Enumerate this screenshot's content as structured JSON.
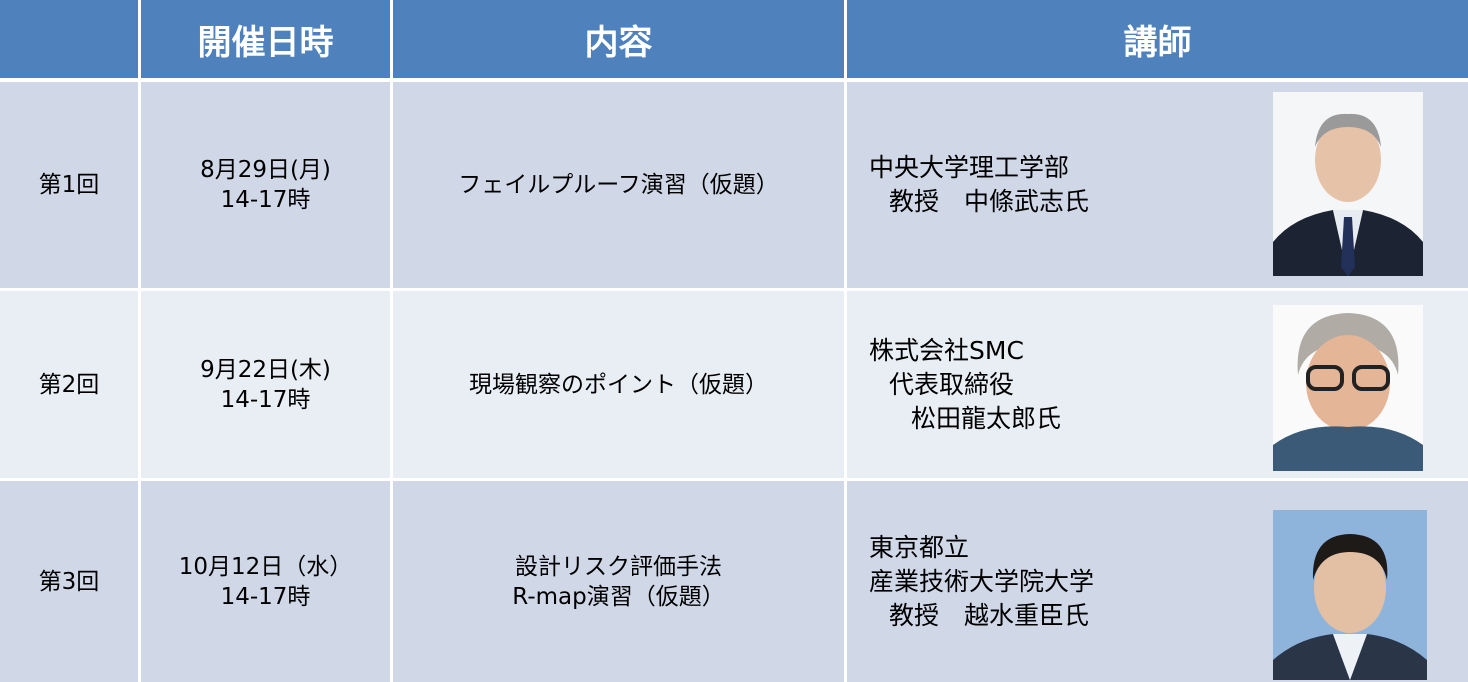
{
  "table": {
    "header": [
      "開催日時",
      "内容",
      "講師"
    ],
    "rows": [
      {
        "session": "第1回",
        "datetime": [
          "8月29日(月)",
          "14-17時"
        ],
        "content": [
          "フェイルプルーフ演習（仮題）"
        ],
        "instructor": [
          "中央大学理工学部",
          "教授　中條武志氏"
        ]
      },
      {
        "session": "第2回",
        "datetime": [
          "9月22日(木)",
          "14-17時"
        ],
        "content": [
          "現場観察のポイント（仮題）"
        ],
        "instructor": [
          "株式会社SMC",
          "代表取締役",
          "松田龍太郎氏"
        ]
      },
      {
        "session": "第3回",
        "datetime": [
          "10月12日（水）",
          "14-17時"
        ],
        "content": [
          "設計リスク評価手法",
          "R-map演習（仮題）"
        ],
        "instructor": [
          "東京都立",
          "産業技術大学院大学",
          "教授　越水重臣氏"
        ]
      }
    ]
  }
}
